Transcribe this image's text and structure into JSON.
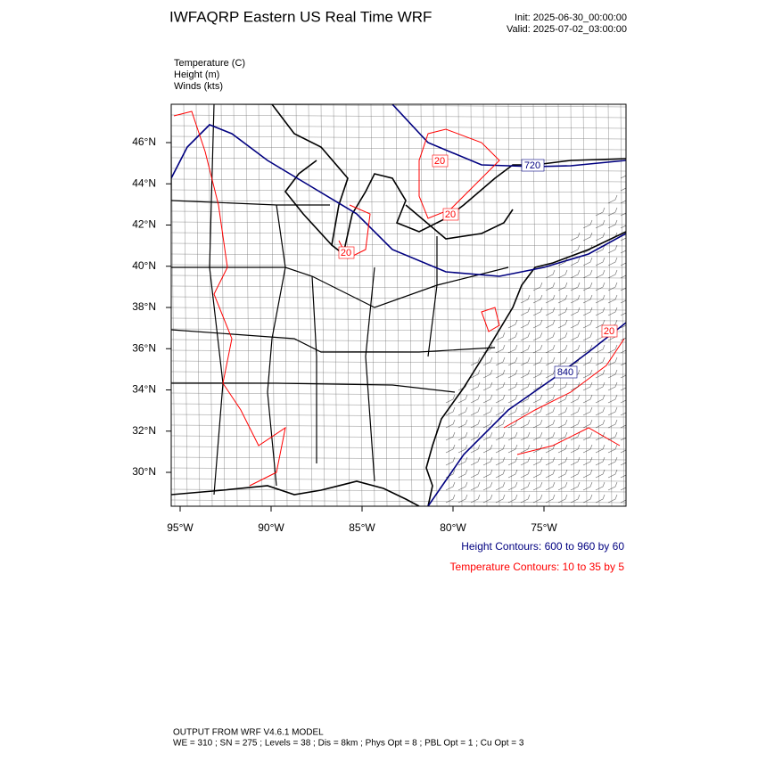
{
  "header": {
    "title": "IWFAQRP Eastern US Real Time WRF",
    "init": "Init: 2025-06-30_00:00:00",
    "valid": "Valid: 2025-07-02_03:00:00"
  },
  "fields": [
    "Temperature   (C)",
    "Height   (m)",
    "Winds   (kts)"
  ],
  "lat_labels": [
    "46°N",
    "44°N",
    "42°N",
    "40°N",
    "38°N",
    "36°N",
    "34°N",
    "32°N",
    "30°N"
  ],
  "lon_labels": [
    "95°W",
    "90°W",
    "85°W",
    "80°W",
    "75°W"
  ],
  "contour_labels": [
    "20",
    "720",
    "20",
    "20",
    "20",
    "840"
  ],
  "legend": {
    "height": "Height Contours: 600 to 960 by 60",
    "temperature": "Temperature Contours: 10 to 35 by 5"
  },
  "footer": {
    "line1": "OUTPUT FROM WRF V4.6.1 MODEL",
    "line2": "WE = 310 ; SN = 275 ; Levels = 38 ; Dis = 8km ; Phys Opt = 8 ; PBL Opt = 1 ; Cu Opt = 3"
  }
}
